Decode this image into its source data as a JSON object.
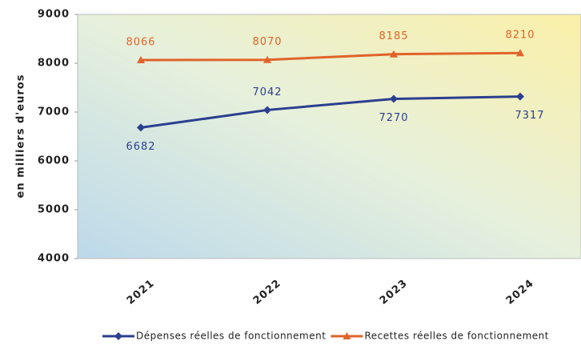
{
  "chart_data": {
    "type": "line",
    "y_label": "en milliers d'euros",
    "categories": [
      "2021",
      "2022",
      "2023",
      "2024"
    ],
    "series": [
      {
        "name": "Dépenses réelles de fonctionnement",
        "color": "#2b3f8f",
        "marker": "diamond",
        "values": [
          6682,
          7042,
          7270,
          7317
        ],
        "label_pos": [
          "below",
          "above",
          "below",
          "below"
        ]
      },
      {
        "name": "Recettes réelles de fonctionnement",
        "color": "#e0632a",
        "marker": "triangle",
        "values": [
          8066,
          8070,
          8185,
          8210
        ],
        "label_pos": [
          "above",
          "above",
          "above",
          "above"
        ]
      }
    ],
    "ylim": [
      4000,
      9000
    ],
    "yticks": [
      4000,
      5000,
      6000,
      7000,
      8000,
      9000
    ],
    "grid": false
  }
}
